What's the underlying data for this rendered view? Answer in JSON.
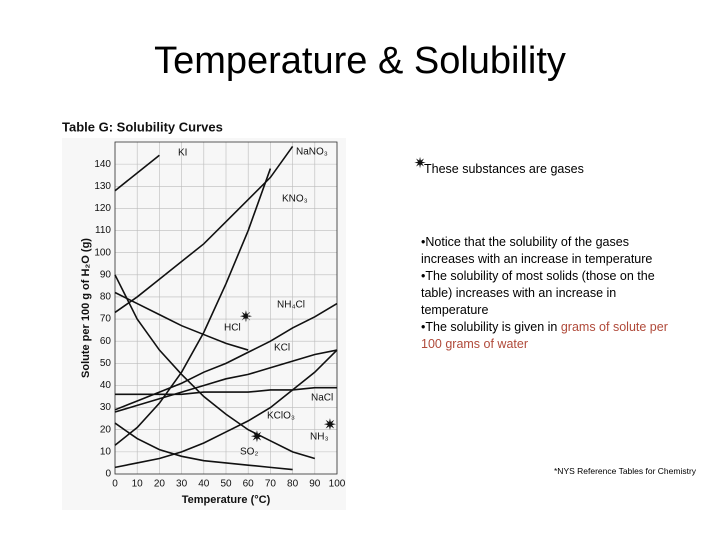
{
  "slide_title": "Temperature & Solubility",
  "gas_note": "These substances are gases",
  "bullets": [
    "•Notice that the solubility of the gases increases with an increase in temperature",
    "•The solubility of most solids (those on the table) increases with an increase in temperature"
  ],
  "last_bullet": {
    "text": "•The solubility is given in ",
    "highlight": "grams of solute per 100 grams of water"
  },
  "source": "*NYS Reference Tables for Chemistry",
  "chart_data": {
    "type": "line",
    "title": "Table G:  Solubility Curves",
    "x_label": "Temperature (°C)",
    "y_label": "Solute per 100 g of H₂O (g)",
    "x": [
      0,
      10,
      20,
      30,
      40,
      50,
      60,
      70,
      80,
      90,
      100
    ],
    "xlim": [
      0,
      100
    ],
    "xticks": [
      0,
      10,
      20,
      30,
      40,
      50,
      60,
      70,
      80,
      90,
      100
    ],
    "ylim": [
      0,
      150
    ],
    "yticks": [
      0,
      10,
      20,
      30,
      40,
      50,
      60,
      70,
      80,
      90,
      100,
      110,
      120,
      130,
      140
    ],
    "grid": true,
    "series": [
      {
        "name": "KI",
        "color": "#111111",
        "values": [
          128,
          136,
          144,
          null,
          null,
          null,
          null,
          null,
          null,
          null,
          null
        ]
      },
      {
        "name": "NaNO₃",
        "color": "#111111",
        "values": [
          73,
          80,
          88,
          96,
          104,
          114,
          124,
          134,
          148,
          null,
          null
        ]
      },
      {
        "name": "KNO₃",
        "color": "#111111",
        "values": [
          13,
          21,
          32,
          46,
          64,
          86,
          110,
          138,
          null,
          null,
          null
        ]
      },
      {
        "name": "NH₄Cl",
        "color": "#111111",
        "values": [
          29,
          33,
          37,
          41,
          46,
          50,
          55,
          60,
          66,
          71,
          77
        ]
      },
      {
        "name": "HCl",
        "color": "#111111",
        "values": [
          82,
          77,
          72,
          67,
          63,
          59,
          56,
          null,
          null,
          null,
          null
        ]
      },
      {
        "name": "KCl",
        "color": "#111111",
        "values": [
          28,
          31,
          34,
          37,
          40,
          43,
          45,
          48,
          51,
          54,
          56
        ]
      },
      {
        "name": "NaCl",
        "color": "#111111",
        "values": [
          36,
          36,
          36,
          36,
          37,
          37,
          37,
          38,
          38,
          39,
          39
        ]
      },
      {
        "name": "KClO₃",
        "color": "#111111",
        "values": [
          3,
          5,
          7,
          10,
          14,
          19,
          24,
          30,
          38,
          46,
          56
        ]
      },
      {
        "name": "NH₃",
        "color": "#111111",
        "values": [
          90,
          70,
          56,
          45,
          35,
          27,
          20,
          15,
          10,
          7,
          null
        ]
      },
      {
        "name": "SO₂",
        "color": "#111111",
        "values": [
          23,
          16,
          11,
          8,
          6,
          5,
          4,
          3,
          2,
          null,
          null
        ]
      }
    ]
  }
}
